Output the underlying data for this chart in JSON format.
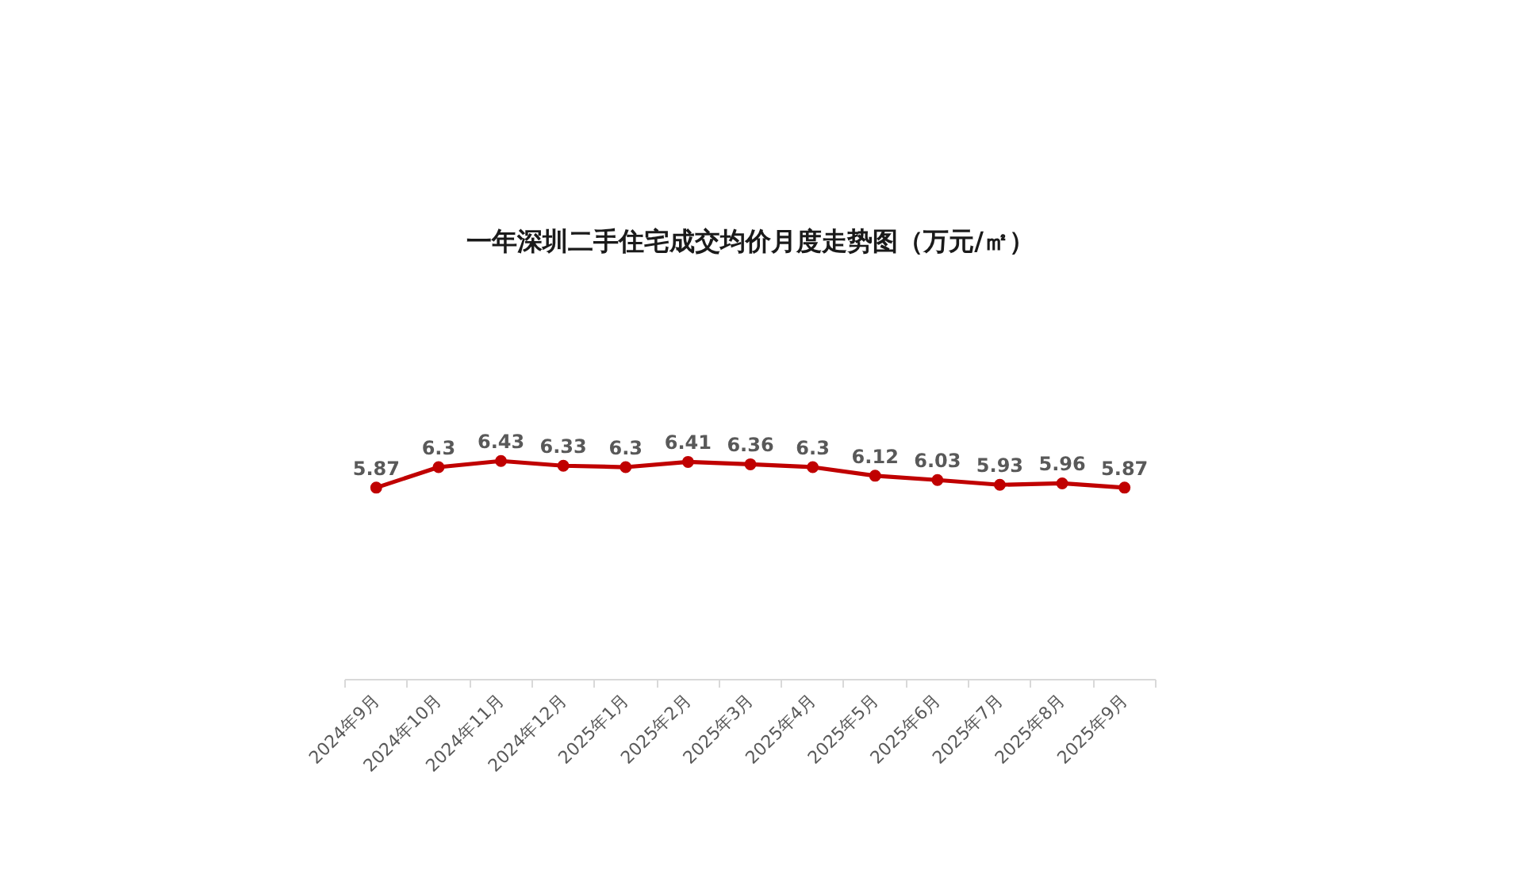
{
  "chart_data": {
    "type": "line",
    "title": "一年深圳二手住宅成交均价月度走势图（万元/㎡）",
    "categories": [
      "2024年9月",
      "2024年10月",
      "2024年11月",
      "2024年12月",
      "2025年1月",
      "2025年2月",
      "2025年3月",
      "2025年4月",
      "2025年5月",
      "2025年6月",
      "2025年7月",
      "2025年8月",
      "2025年9月"
    ],
    "series": [
      {
        "color": "#c00000",
        "values": [
          5.87,
          6.3,
          6.43,
          6.33,
          6.3,
          6.41,
          6.36,
          6.3,
          6.12,
          6.03,
          5.93,
          5.96,
          5.87
        ]
      }
    ],
    "data_labels": true,
    "marker": "circle",
    "line_style": "solid",
    "grid": false,
    "tick_labels": "x"
  }
}
